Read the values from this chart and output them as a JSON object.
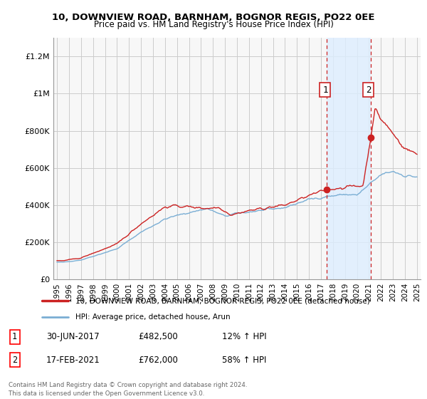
{
  "title1": "10, DOWNVIEW ROAD, BARNHAM, BOGNOR REGIS, PO22 0EE",
  "title2": "Price paid vs. HM Land Registry's House Price Index (HPI)",
  "legend_line1": "10, DOWNVIEW ROAD, BARNHAM, BOGNOR REGIS, PO22 0EE (detached house)",
  "legend_line2": "HPI: Average price, detached house, Arun",
  "annotation1_label": "1",
  "annotation1_date": "30-JUN-2017",
  "annotation1_price": "£482,500",
  "annotation1_change": "12% ↑ HPI",
  "annotation2_label": "2",
  "annotation2_date": "17-FEB-2021",
  "annotation2_price": "£762,000",
  "annotation2_change": "58% ↑ HPI",
  "footer": "Contains HM Land Registry data © Crown copyright and database right 2024.\nThis data is licensed under the Open Government Licence v3.0.",
  "line1_color": "#cc2222",
  "line2_color": "#7aaed4",
  "vline_color": "#cc2222",
  "shade_color": "#ddeeff",
  "grid_color": "#cccccc",
  "background_color": "#ffffff",
  "plot_bg_color": "#f7f7f7",
  "ylim": [
    0,
    1300000
  ],
  "yticks": [
    0,
    200000,
    400000,
    600000,
    800000,
    1000000,
    1200000
  ],
  "ytick_labels": [
    "£0",
    "£200K",
    "£400K",
    "£600K",
    "£800K",
    "£1M",
    "£1.2M"
  ],
  "year_start": 1995,
  "year_end": 2025,
  "point1_year": 2017.5,
  "point1_value": 482500,
  "point2_year": 2021.12,
  "point2_value": 762000
}
